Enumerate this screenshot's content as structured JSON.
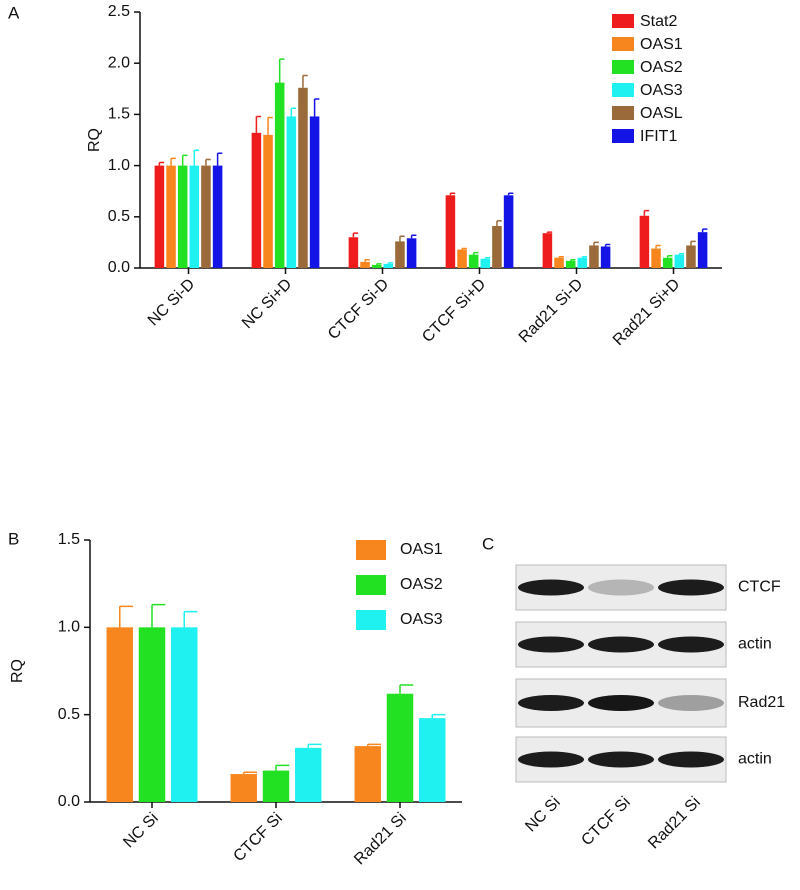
{
  "chart_data": [
    {
      "type": "bar",
      "label": "A",
      "ylabel": "RQ",
      "legend": "upper right",
      "categories": [
        "NC Si-D",
        "NC Si+D",
        "CTCF Si-D",
        "CTCF Si+D",
        "Rad21 Si-D",
        "Rad21 Si+D"
      ],
      "ylim": [
        0,
        2.5
      ],
      "yticks": [
        {
          "value": 0,
          "label": "0.0"
        },
        0.5,
        {
          "value": 1,
          "label": "1.0"
        },
        1.5,
        {
          "value": 2,
          "label": "2.0"
        },
        2.5
      ],
      "series": [
        {
          "name": "Stat2",
          "color": "#ee1c1c",
          "values": [
            1.0,
            1.32,
            0.3,
            0.71,
            0.34,
            0.51
          ],
          "errors": [
            0.03,
            0.16,
            0.04,
            0.02,
            0.01,
            0.05
          ]
        },
        {
          "name": "OAS1",
          "color": "#f7861f",
          "values": [
            1.0,
            1.3,
            0.06,
            0.18,
            0.1,
            0.19
          ],
          "errors": [
            0.07,
            0.17,
            0.02,
            0.01,
            0.01,
            0.03
          ]
        },
        {
          "name": "OAS2",
          "color": "#22e022",
          "values": [
            1.0,
            1.81,
            0.03,
            0.13,
            0.07,
            0.1
          ],
          "errors": [
            0.1,
            0.23,
            0.01,
            0.02,
            0.01,
            0.02
          ]
        },
        {
          "name": "OAS3",
          "color": "#1ff0f0",
          "values": [
            1.0,
            1.48,
            0.04,
            0.09,
            0.1,
            0.13
          ],
          "errors": [
            0.15,
            0.08,
            0.01,
            0.01,
            0.01,
            0.01
          ]
        },
        {
          "name": "OASL",
          "color": "#9b6a3a",
          "values": [
            1.0,
            1.76,
            0.26,
            0.41,
            0.22,
            0.22
          ],
          "errors": [
            0.06,
            0.12,
            0.05,
            0.05,
            0.03,
            0.04
          ]
        },
        {
          "name": "IFIT1",
          "color": "#1414e6",
          "values": [
            1.0,
            1.48,
            0.29,
            0.71,
            0.21,
            0.35
          ],
          "errors": [
            0.12,
            0.17,
            0.03,
            0.02,
            0.02,
            0.03
          ]
        }
      ]
    },
    {
      "type": "bar",
      "label": "B",
      "ylabel": "RQ",
      "legend": "upper right",
      "categories": [
        "NC Si",
        "CTCF Si",
        "Rad21 Si"
      ],
      "ylim": [
        0,
        1.5
      ],
      "yticks": [
        {
          "value": 0,
          "label": "0.0"
        },
        0.5,
        {
          "value": 1,
          "label": "1.0"
        },
        1.5
      ],
      "series": [
        {
          "name": "OAS1",
          "color": "#f7861f",
          "values": [
            1.0,
            0.16,
            0.32
          ],
          "errors": [
            0.12,
            0.01,
            0.01
          ]
        },
        {
          "name": "OAS2",
          "color": "#22e022",
          "values": [
            1.0,
            0.18,
            0.62
          ],
          "errors": [
            0.13,
            0.03,
            0.05
          ]
        },
        {
          "name": "OAS3",
          "color": "#1ff0f0",
          "values": [
            1.0,
            0.31,
            0.48
          ],
          "errors": [
            0.09,
            0.02,
            0.02
          ]
        }
      ]
    }
  ],
  "blot": {
    "label": "C",
    "rows": [
      "CTCF",
      "actin",
      "Rad21",
      "actin"
    ],
    "lanes": [
      "NC Si",
      "CTCF Si",
      "Rad21 Si"
    ]
  }
}
